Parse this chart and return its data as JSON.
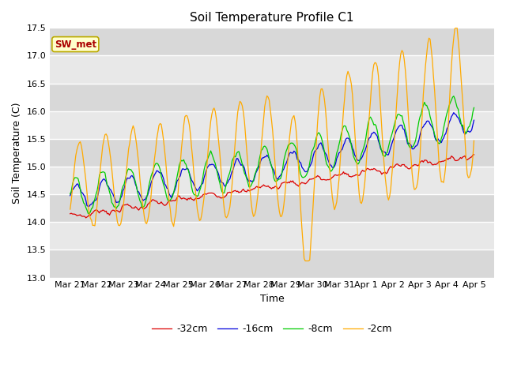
{
  "title": "Soil Temperature Profile C1",
  "xlabel": "Time",
  "ylabel": "Soil Temperature (C)",
  "ylim": [
    13.0,
    17.5
  ],
  "yticks": [
    13.0,
    13.5,
    14.0,
    14.5,
    15.0,
    15.5,
    16.0,
    16.5,
    17.0,
    17.5
  ],
  "legend_labels": [
    "-32cm",
    "-16cm",
    "-8cm",
    "-2cm"
  ],
  "legend_colors": [
    "#dd0000",
    "#0000dd",
    "#00cc00",
    "#ffaa00"
  ],
  "annotation_text": "SW_met",
  "fig_bg": "#ffffff",
  "plot_bg": "#e8e8e8",
  "x_tick_labels": [
    "Mar 21",
    "Mar 22",
    "Mar 23",
    "Mar 24",
    "Mar 25",
    "Mar 26",
    "Mar 27",
    "Mar 28",
    "Mar 29",
    "Mar 30",
    "Mar 31",
    "Apr 1",
    "Apr 2",
    "Apr 3",
    "Apr 4",
    "Apr 5"
  ],
  "num_points": 360
}
